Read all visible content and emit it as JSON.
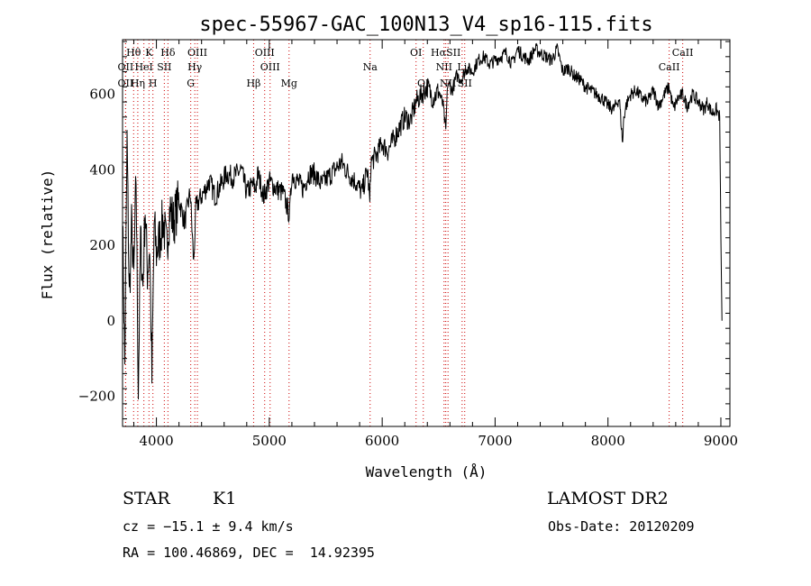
{
  "chart_data": {
    "type": "line",
    "title": "spec-55967-GAC_100N13_V4_sp16-115.fits",
    "xlabel": "Wavelength (Å)",
    "ylabel": "Flux (relative)",
    "xlim": [
      3700,
      9080
    ],
    "ylim": [
      -280,
      745
    ],
    "x_ticks": [
      4000,
      5000,
      6000,
      7000,
      8000,
      9000
    ],
    "y_ticks": [
      -200,
      0,
      200,
      400,
      600
    ],
    "grid": false,
    "series": [
      {
        "x": [
          3700,
          3720,
          3740,
          3760,
          3780,
          3800,
          3820,
          3840,
          3860,
          3880,
          3900,
          3920,
          3940,
          3960,
          3980,
          4000,
          4030,
          4060,
          4090,
          4120,
          4150,
          4200,
          4250,
          4300,
          4330,
          4350,
          4380,
          4420,
          4470,
          4520,
          4570,
          4620,
          4680,
          4750,
          4800,
          4850,
          4880,
          4900,
          4950,
          5000,
          5060,
          5120,
          5180,
          5200,
          5250,
          5300,
          5350,
          5400,
          5460,
          5520,
          5580,
          5640,
          5700,
          5760,
          5820,
          5870,
          5890,
          5900,
          5950,
          6000,
          6050,
          6100,
          6150,
          6200,
          6250,
          6300,
          6350,
          6400,
          6450,
          6500,
          6540,
          6563,
          6580,
          6620,
          6660,
          6700,
          6750,
          6800,
          6850,
          6900,
          6950,
          7000,
          7050,
          7100,
          7150,
          7200,
          7250,
          7300,
          7350,
          7400,
          7450,
          7500,
          7550,
          7600,
          7650,
          7700,
          7750,
          7800,
          7850,
          7900,
          7950,
          8000,
          8050,
          8100,
          8130,
          8140,
          8160,
          8200,
          8250,
          8300,
          8350,
          8400,
          8450,
          8498,
          8520,
          8542,
          8580,
          8620,
          8662,
          8700,
          8750,
          8800,
          8850,
          8880,
          8920,
          8960,
          8990,
          9000,
          9010
        ],
        "y": [
          270,
          -120,
          480,
          60,
          250,
          110,
          380,
          -180,
          220,
          90,
          300,
          130,
          200,
          -160,
          260,
          180,
          220,
          270,
          190,
          300,
          260,
          320,
          260,
          340,
          150,
          300,
          320,
          340,
          370,
          330,
          360,
          390,
          380,
          400,
          340,
          360,
          350,
          390,
          330,
          370,
          350,
          340,
          280,
          390,
          370,
          350,
          390,
          390,
          360,
          380,
          400,
          420,
          390,
          370,
          340,
          400,
          310,
          420,
          440,
          470,
          450,
          480,
          510,
          540,
          530,
          580,
          600,
          620,
          590,
          610,
          570,
          500,
          630,
          610,
          650,
          640,
          670,
          660,
          690,
          700,
          680,
          690,
          700,
          710,
          680,
          720,
          700,
          690,
          720,
          710,
          700,
          690,
          720,
          660,
          670,
          650,
          640,
          620,
          610,
          600,
          590,
          570,
          560,
          590,
          470,
          540,
          570,
          600,
          610,
          590,
          580,
          610,
          570,
          600,
          610,
          620,
          560,
          590,
          600,
          570,
          600,
          580,
          560,
          580,
          550,
          560,
          540,
          220,
          0
        ]
      }
    ],
    "line_annotations": [
      {
        "label": "Hθ",
        "x": 3798,
        "row": 1
      },
      {
        "label": "K",
        "x": 3934,
        "row": 1
      },
      {
        "label": "Hδ",
        "x": 4102,
        "row": 1
      },
      {
        "label": "OIII",
        "x": 4363,
        "row": 1
      },
      {
        "label": "OIII",
        "x": 4959,
        "row": 1
      },
      {
        "label": "OI",
        "x": 6300,
        "row": 1
      },
      {
        "label": "HαSII",
        "x": 6563,
        "row": 1
      },
      {
        "label": "CaII",
        "x": 8662,
        "row": 1
      },
      {
        "label": "OII",
        "x": 3727,
        "row": 2
      },
      {
        "label": "HeI",
        "x": 3889,
        "row": 2
      },
      {
        "label": "SII",
        "x": 4070,
        "row": 2
      },
      {
        "label": "Hγ",
        "x": 4340,
        "row": 2
      },
      {
        "label": "OIII",
        "x": 5007,
        "row": 2
      },
      {
        "label": "Na",
        "x": 5893,
        "row": 2
      },
      {
        "label": "NII",
        "x": 6548,
        "row": 2
      },
      {
        "label": "Li",
        "x": 6708,
        "row": 2
      },
      {
        "label": "CaII",
        "x": 8542,
        "row": 2
      },
      {
        "label": "OII",
        "x": 3727,
        "row": 3
      },
      {
        "label": "Hη",
        "x": 3835,
        "row": 3
      },
      {
        "label": "H",
        "x": 3969,
        "row": 3
      },
      {
        "label": "G",
        "x": 4304,
        "row": 3
      },
      {
        "label": "Hβ",
        "x": 4861,
        "row": 3
      },
      {
        "label": "Mg",
        "x": 5175,
        "row": 3
      },
      {
        "label": "OI",
        "x": 6364,
        "row": 3
      },
      {
        "label": "NII",
        "x": 6583,
        "row": 3
      },
      {
        "label": "SII",
        "x": 6731,
        "row": 3
      }
    ],
    "line_marker_color": "#cc0000"
  },
  "info": {
    "class_label": "STAR",
    "subclass": "K1",
    "survey": "LAMOST DR2",
    "redshift": "cz = −15.1 ± 9.4 km/s",
    "obs_date": "Obs-Date: 20120209",
    "coords": "RA = 100.46869, DEC =  14.92395"
  }
}
